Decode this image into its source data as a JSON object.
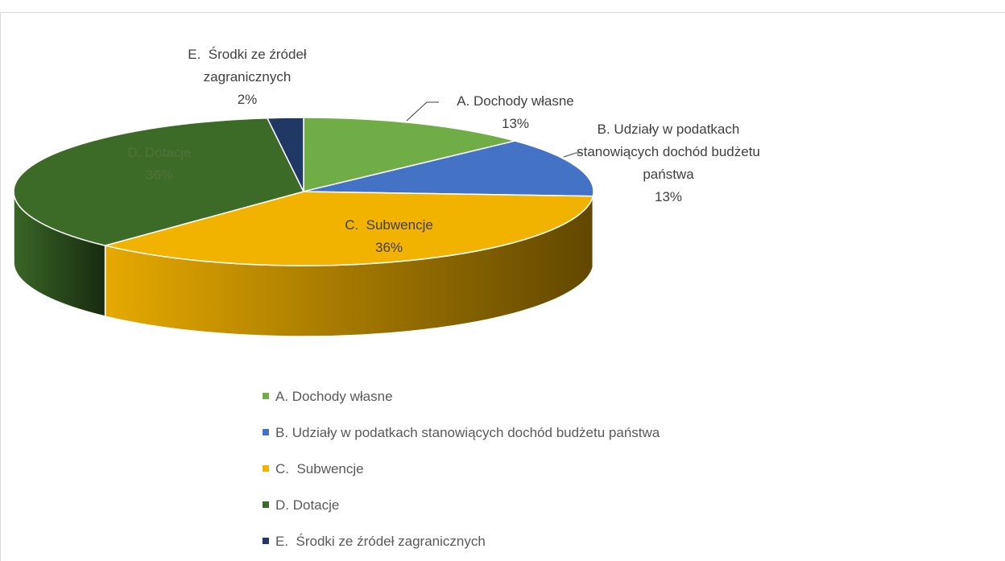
{
  "chart_data": {
    "type": "pie3d",
    "categories": [
      "A. Dochody własne",
      "B. Udziały w podatkach stanowiących dochód budżetu państwa",
      "C.  Subwencje",
      "D. Dotacje",
      "E.  Środki ze źródeł zagranicznych"
    ],
    "values": [
      13,
      13,
      36,
      36,
      2
    ],
    "value_labels": [
      "13%",
      "13%",
      "36%",
      "36%",
      "2%"
    ],
    "colors": [
      "#70ad47",
      "#4472c4",
      "#f2b200",
      "#3c6b28",
      "#203864"
    ],
    "legend": "bottom"
  }
}
